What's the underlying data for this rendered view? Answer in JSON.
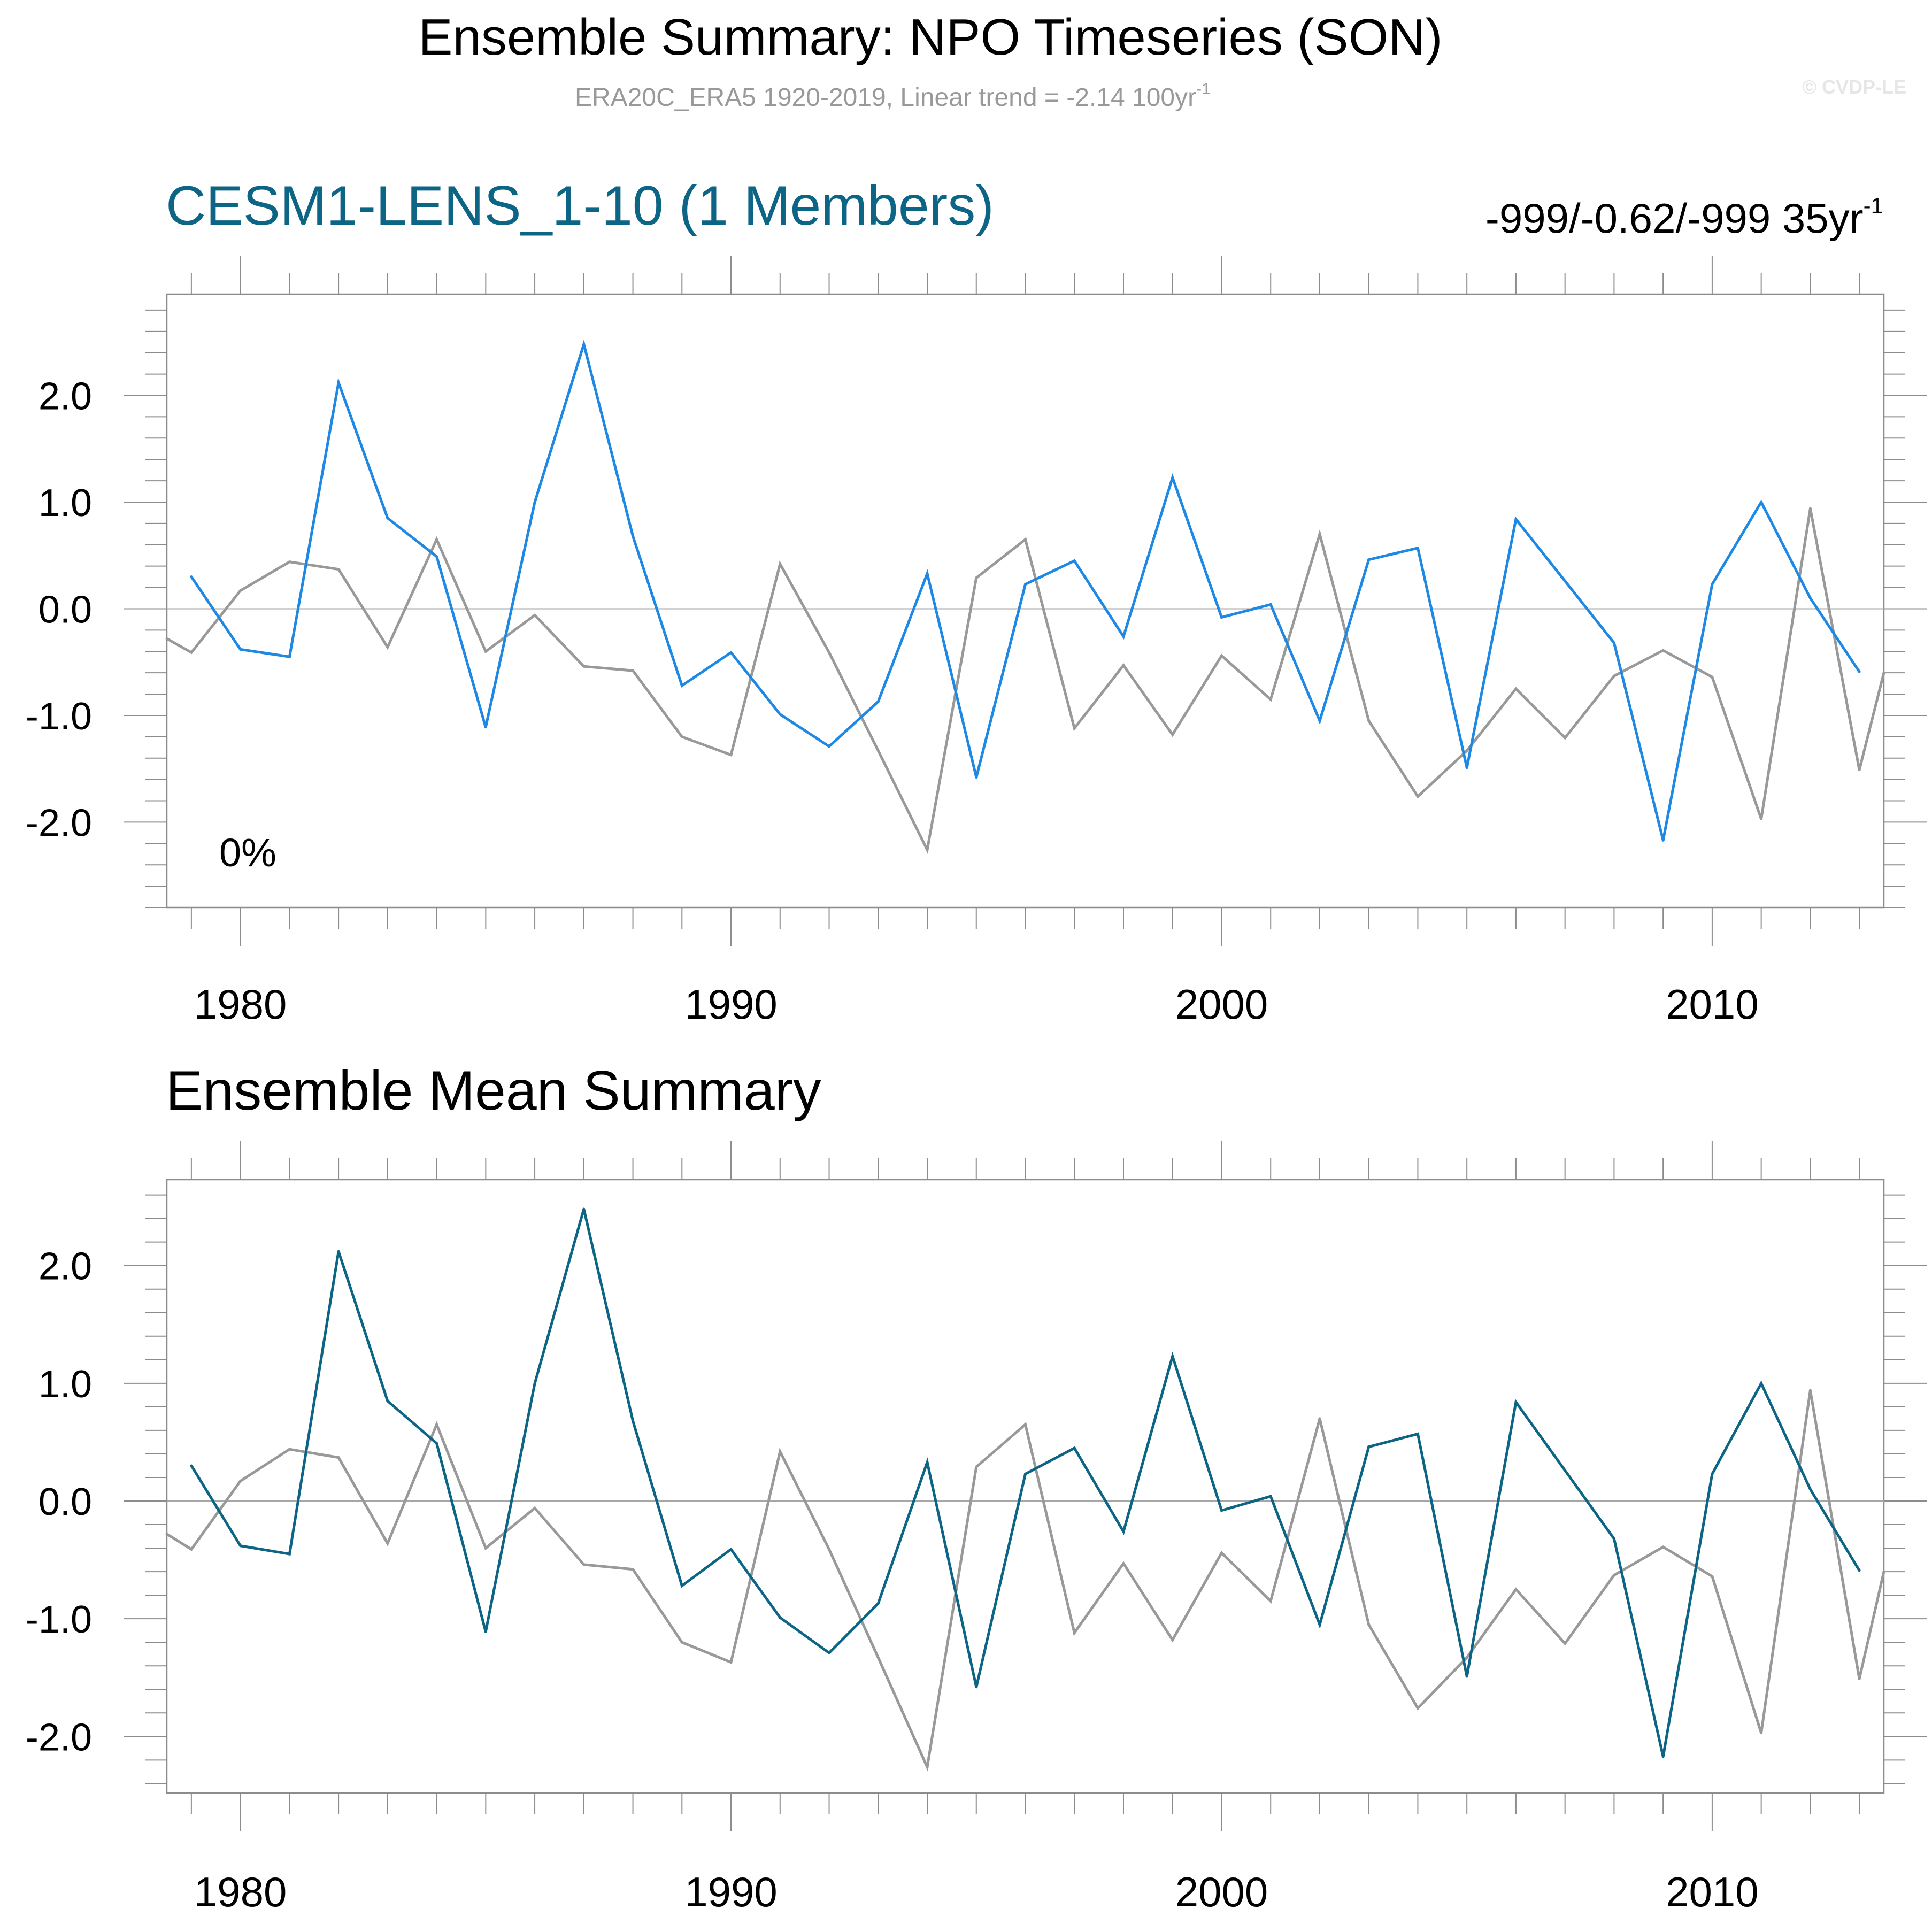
{
  "header": {
    "title": "Ensemble Summary: NPO Timeseries (SON)",
    "subtitle": "ERA20C_ERA5 1920-2019, Linear trend = -2.14 100yr",
    "subtitle_sup": "-1",
    "copyright": "© CVDP-LE"
  },
  "panels": {
    "top": {
      "title": "CESM1-LENS_1-10 (1 Members)",
      "trend": "-999/-0.62/-999 35yr",
      "trend_sup": "-1",
      "percent": "0%"
    },
    "bottom": {
      "title": "Ensemble Mean Summary"
    }
  },
  "colors": {
    "observation": "#999999",
    "ensemble_member": "#1e88e5",
    "ensemble_mean": "#0d6585",
    "top_title": "#0d6585"
  },
  "chart_data": [
    {
      "type": "line",
      "x_ticks": [
        1980,
        1990,
        2000,
        2010
      ],
      "y_ticks": [
        "2.0",
        "1.0",
        "0.0",
        "-1.0",
        "-2.0"
      ],
      "xlim": [
        1978.5,
        2013.5
      ],
      "ylim": [
        -2.8,
        2.95
      ],
      "series": [
        {
          "role": "observation",
          "x": [
            1978.5,
            1979,
            1980,
            1981,
            1982,
            1983,
            1984,
            1985,
            1986,
            1987,
            1988,
            1989,
            1990,
            1991,
            1992,
            1993,
            1994,
            1995,
            1996,
            1997,
            1998,
            1999,
            2000,
            2001,
            2002,
            2003,
            2004,
            2005,
            2006,
            2007,
            2008,
            2009,
            2010,
            2011,
            2012,
            2013,
            2013.5
          ],
          "values": [
            -0.28,
            -0.41,
            0.17,
            0.44,
            0.37,
            -0.36,
            0.65,
            -0.4,
            -0.06,
            -0.54,
            -0.58,
            -1.2,
            -1.37,
            0.42,
            -0.41,
            -1.33,
            -2.26,
            0.29,
            0.65,
            -1.12,
            -0.53,
            -1.18,
            -0.44,
            -0.85,
            0.7,
            -1.05,
            -1.76,
            -1.33,
            -0.75,
            -1.21,
            -0.63,
            -0.39,
            -0.64,
            -1.97,
            0.94,
            -1.51,
            -0.6
          ]
        },
        {
          "role": "model",
          "x": [
            1979,
            1980,
            1981,
            1982,
            1983,
            1984,
            1985,
            1986,
            1987,
            1988,
            1989,
            1990,
            1991,
            1992,
            1993,
            1994,
            1995,
            1996,
            1997,
            1998,
            1999,
            2000,
            2001,
            2002,
            2003,
            2004,
            2005,
            2006,
            2007,
            2008,
            2009,
            2010,
            2011,
            2012,
            2013
          ],
          "values": [
            0.3,
            -0.38,
            -0.45,
            2.12,
            0.85,
            0.49,
            -1.11,
            1.0,
            2.48,
            0.68,
            -0.72,
            -0.41,
            -0.99,
            -1.29,
            -0.87,
            0.33,
            -1.58,
            0.23,
            0.45,
            -0.26,
            1.23,
            -0.08,
            0.04,
            -1.05,
            0.46,
            0.57,
            -1.49,
            0.84,
            0.26,
            -0.32,
            -2.17,
            0.23,
            1.0,
            0.1,
            -0.59
          ]
        }
      ]
    },
    {
      "type": "line",
      "x_ticks": [
        1980,
        1990,
        2000,
        2010
      ],
      "y_ticks": [
        "2.0",
        "1.0",
        "0.0",
        "-1.0",
        "-2.0"
      ],
      "xlim": [
        1978.5,
        2013.5
      ],
      "ylim": [
        -2.48,
        2.73
      ],
      "series": [
        {
          "role": "observation",
          "x": [
            1978.5,
            1979,
            1980,
            1981,
            1982,
            1983,
            1984,
            1985,
            1986,
            1987,
            1988,
            1989,
            1990,
            1991,
            1992,
            1993,
            1994,
            1995,
            1996,
            1997,
            1998,
            1999,
            2000,
            2001,
            2002,
            2003,
            2004,
            2005,
            2006,
            2007,
            2008,
            2009,
            2010,
            2011,
            2012,
            2013,
            2013.5
          ],
          "values": [
            -0.28,
            -0.41,
            0.17,
            0.44,
            0.37,
            -0.36,
            0.65,
            -0.4,
            -0.06,
            -0.54,
            -0.58,
            -1.2,
            -1.37,
            0.42,
            -0.41,
            -1.33,
            -2.26,
            0.29,
            0.65,
            -1.12,
            -0.53,
            -1.18,
            -0.44,
            -0.85,
            0.7,
            -1.05,
            -1.76,
            -1.33,
            -0.75,
            -1.21,
            -0.63,
            -0.39,
            -0.64,
            -1.97,
            0.94,
            -1.51,
            -0.6
          ]
        },
        {
          "role": "model-mean",
          "x": [
            1979,
            1980,
            1981,
            1982,
            1983,
            1984,
            1985,
            1986,
            1987,
            1988,
            1989,
            1990,
            1991,
            1992,
            1993,
            1994,
            1995,
            1996,
            1997,
            1998,
            1999,
            2000,
            2001,
            2002,
            2003,
            2004,
            2005,
            2006,
            2007,
            2008,
            2009,
            2010,
            2011,
            2012,
            2013
          ],
          "values": [
            0.3,
            -0.38,
            -0.45,
            2.12,
            0.85,
            0.49,
            -1.11,
            1.0,
            2.48,
            0.68,
            -0.72,
            -0.41,
            -0.99,
            -1.29,
            -0.87,
            0.33,
            -1.58,
            0.23,
            0.45,
            -0.26,
            1.23,
            -0.08,
            0.04,
            -1.05,
            0.46,
            0.57,
            -1.49,
            0.84,
            0.26,
            -0.32,
            -2.17,
            0.23,
            1.0,
            0.1,
            -0.59
          ]
        }
      ]
    }
  ]
}
